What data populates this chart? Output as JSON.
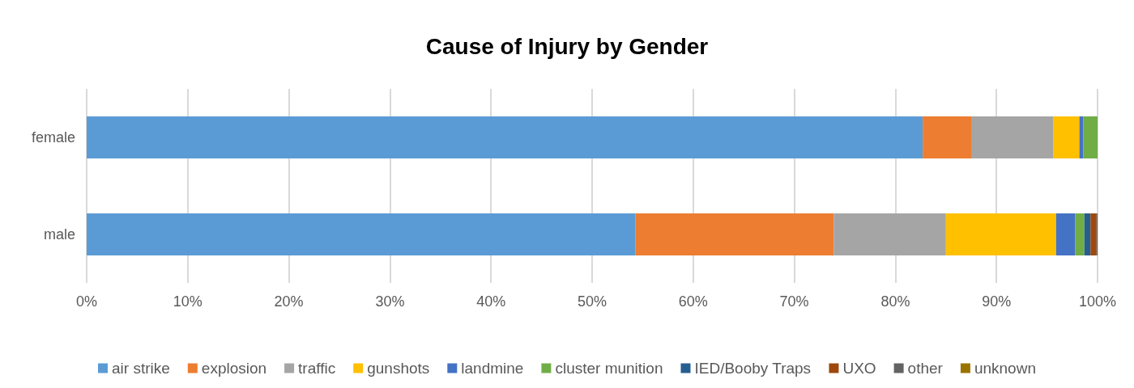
{
  "chart_data": {
    "type": "bar",
    "title": "Cause of Injury by Gender",
    "orientation": "horizontal",
    "stacked": true,
    "categories": [
      "female",
      "male"
    ],
    "series": [
      {
        "name": "air strike",
        "color": "#5b9bd5",
        "values": [
          82.7,
          54.3
        ]
      },
      {
        "name": "explosion",
        "color": "#ed7d31",
        "values": [
          4.8,
          19.6
        ]
      },
      {
        "name": "traffic",
        "color": "#a5a5a5",
        "values": [
          8.1,
          11.1
        ]
      },
      {
        "name": "gunshots",
        "color": "#ffc000",
        "values": [
          2.6,
          10.9
        ]
      },
      {
        "name": "landmine",
        "color": "#4472c4",
        "values": [
          0.4,
          1.9
        ]
      },
      {
        "name": "cluster munition",
        "color": "#70ad47",
        "values": [
          1.4,
          0.9
        ]
      },
      {
        "name": "IED/Booby Traps",
        "color": "#255e91",
        "values": [
          0,
          0.6
        ]
      },
      {
        "name": "UXO",
        "color": "#9e480e",
        "values": [
          0,
          0.6
        ]
      },
      {
        "name": "other",
        "color": "#636363",
        "values": [
          0,
          0.1
        ]
      },
      {
        "name": "unknown",
        "color": "#997300",
        "values": [
          0,
          0
        ]
      }
    ],
    "xlim": [
      0,
      100
    ],
    "xticks": [
      {
        "value": 0,
        "label": "0%"
      },
      {
        "value": 10,
        "label": "10%"
      },
      {
        "value": 20,
        "label": "20%"
      },
      {
        "value": 30,
        "label": "30%"
      },
      {
        "value": 40,
        "label": "40%"
      },
      {
        "value": 50,
        "label": "50%"
      },
      {
        "value": 60,
        "label": "60%"
      },
      {
        "value": 70,
        "label": "70%"
      },
      {
        "value": 80,
        "label": "80%"
      },
      {
        "value": 90,
        "label": "90%"
      },
      {
        "value": 100,
        "label": "100%"
      }
    ],
    "grid": "x",
    "legend": "bottom"
  }
}
